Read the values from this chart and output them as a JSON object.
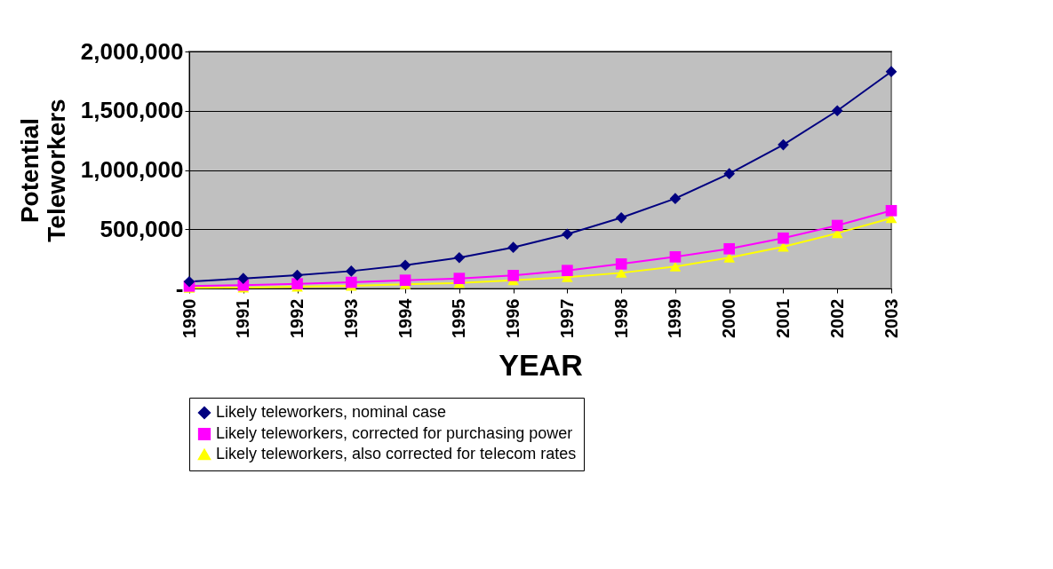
{
  "chart_data": {
    "type": "line",
    "xlabel": "YEAR",
    "ylabel": "Potential Teleworkers",
    "categories": [
      "1990",
      "1991",
      "1992",
      "1993",
      "1994",
      "1995",
      "1996",
      "1997",
      "1998",
      "1999",
      "2000",
      "2001",
      "2002",
      "2003"
    ],
    "series": [
      {
        "name": "Likely teleworkers, nominal case",
        "color": "#000080",
        "marker": "diamond",
        "values": [
          58000,
          85000,
          112000,
          147000,
          197000,
          260000,
          347000,
          459000,
          597000,
          759000,
          969000,
          1213000,
          1500000,
          1830000
        ]
      },
      {
        "name": "Likely teleworkers, corrected for purchasing power",
        "color": "#ff00ff",
        "marker": "square",
        "values": [
          20000,
          28000,
          40000,
          52000,
          70000,
          85000,
          110000,
          152000,
          207000,
          267000,
          335000,
          425000,
          532000,
          657000
        ]
      },
      {
        "name": "Likely teleworkers, also corrected for telecom rates",
        "color": "#ffff00",
        "marker": "triangle",
        "values": [
          5000,
          8000,
          15000,
          22000,
          35000,
          47000,
          70000,
          95000,
          132000,
          185000,
          260000,
          352000,
          467000,
          594000
        ]
      }
    ],
    "ylim": [
      0,
      2000000
    ],
    "yticks": [
      {
        "value": 0,
        "label": "-"
      },
      {
        "value": 500000,
        "label": "500,000"
      },
      {
        "value": 1000000,
        "label": "1,000,000"
      },
      {
        "value": 1500000,
        "label": "1,500,000"
      },
      {
        "value": 2000000,
        "label": "2,000,000"
      }
    ],
    "grid": "y",
    "legend": "bottom",
    "line_style": "solid"
  }
}
